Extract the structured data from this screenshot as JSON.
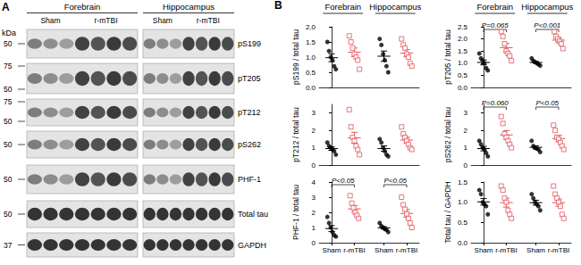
{
  "blots": {
    "panel": "A",
    "unit": "kDa",
    "regions": [
      {
        "name": "Forebrain",
        "groups": [
          "Sham",
          "r-mTBI"
        ]
      },
      {
        "name": "Hippocampus",
        "groups": [
          "Sham",
          "r-mTBI"
        ]
      }
    ],
    "rows": [
      {
        "label": "pS199",
        "markers": [
          50
        ]
      },
      {
        "label": "pT205",
        "markers": [
          75,
          50
        ]
      },
      {
        "label": "pT212",
        "markers": [
          75,
          50
        ]
      },
      {
        "label": "pS262",
        "markers": [
          50
        ]
      },
      {
        "label": "PHF-1",
        "markers": [
          50
        ]
      },
      {
        "label": "Total tau",
        "markers": [
          50
        ]
      },
      {
        "label": "GAPDH",
        "markers": [
          37
        ]
      }
    ]
  },
  "chart_panel": "B",
  "chart_data": [
    {
      "type": "scatter",
      "y_label": "pS199 / total tau",
      "headers": [
        "Forebrain",
        "Hippocampus"
      ],
      "tick_labels": "y",
      "grid": false,
      "ylim": [
        0,
        2
      ],
      "yticks": [
        {
          "value": 0,
          "label": "0.0"
        },
        0.5,
        {
          "value": 1,
          "label": "1.0"
        },
        1.5,
        {
          "value": 2,
          "label": "2.0"
        }
      ],
      "groups": [
        {
          "name": "Sham",
          "color": "#000000",
          "marker": "circle",
          "values": [
            1.5,
            1.2,
            1.0,
            0.9,
            0.7,
            0.6
          ],
          "mean": 0.98,
          "sem": 0.13
        },
        {
          "name": "r-mTBI",
          "color": "#e0555a",
          "marker": "open_square",
          "values": [
            1.7,
            1.5,
            1.3,
            1.1,
            1.0,
            0.9,
            0.6
          ],
          "mean": 1.16,
          "sem": 0.14
        },
        {
          "name": "Sham",
          "color": "#000000",
          "marker": "circle",
          "values": [
            1.6,
            1.4,
            1.1,
            0.9,
            0.7,
            0.5
          ],
          "mean": 1.03,
          "sem": 0.17
        },
        {
          "name": "r-mTBI",
          "color": "#e0555a",
          "marker": "open_square",
          "values": [
            1.6,
            1.4,
            1.3,
            1.1,
            1.0,
            0.8,
            0.7
          ],
          "mean": 1.13,
          "sem": 0.12
        }
      ],
      "annotations": []
    },
    {
      "type": "scatter",
      "y_label": "pT205 / total tau",
      "headers": [
        "Forebrain",
        "Hippocampus"
      ],
      "tick_labels": "y",
      "grid": false,
      "ylim": [
        0,
        2.5
      ],
      "yticks": [
        {
          "value": 0,
          "label": "0.0"
        },
        0.5,
        {
          "value": 1,
          "label": "1.0"
        },
        1.5,
        {
          "value": 2,
          "label": "2.0"
        },
        2.5
      ],
      "groups": [
        {
          "name": "Sham",
          "color": "#000000",
          "marker": "circle",
          "values": [
            1.4,
            1.2,
            1.1,
            1.0,
            0.8,
            0.7
          ],
          "mean": 1.03,
          "sem": 0.1
        },
        {
          "name": "r-mTBI",
          "color": "#e0555a",
          "marker": "open_square",
          "values": [
            2.3,
            2.1,
            1.8,
            1.5,
            1.4,
            1.3,
            1.1
          ],
          "mean": 1.64,
          "sem": 0.17
        },
        {
          "name": "Sham",
          "color": "#000000",
          "marker": "circle",
          "values": [
            1.2,
            1.1,
            1.05,
            1.0,
            0.95,
            0.9
          ],
          "mean": 1.03,
          "sem": 0.04
        },
        {
          "name": "r-mTBI",
          "color": "#e0555a",
          "marker": "open_square",
          "values": [
            2.3,
            2.1,
            2.0,
            1.9,
            1.8,
            1.6
          ],
          "mean": 1.95,
          "sem": 0.1
        }
      ],
      "annotations": [
        {
          "text": "P=0.065",
          "groups": [
            0,
            1
          ]
        },
        {
          "text": "P<0.001",
          "groups": [
            2,
            3
          ]
        }
      ]
    },
    {
      "type": "scatter",
      "y_label": "pT212 / total tau",
      "tick_labels": "y",
      "grid": false,
      "ylim": [
        0,
        3.5
      ],
      "yticks": [
        0,
        1,
        2,
        3
      ],
      "groups": [
        {
          "name": "Sham",
          "color": "#000000",
          "marker": "circle",
          "values": [
            1.3,
            1.1,
            1.0,
            0.9,
            0.8,
            0.6
          ],
          "mean": 0.95,
          "sem": 0.1
        },
        {
          "name": "r-mTBI",
          "color": "#e0555a",
          "marker": "open_square",
          "values": [
            3.2,
            2.2,
            1.6,
            1.4,
            1.1,
            0.9,
            0.6
          ],
          "mean": 1.57,
          "sem": 0.32
        },
        {
          "name": "Sham",
          "color": "#000000",
          "marker": "circle",
          "values": [
            1.5,
            1.3,
            1.0,
            0.8,
            0.6,
            0.5
          ],
          "mean": 0.95,
          "sem": 0.16
        },
        {
          "name": "r-mTBI",
          "color": "#e0555a",
          "marker": "open_square",
          "values": [
            2.2,
            1.8,
            1.6,
            1.4,
            1.2,
            1.0,
            0.9
          ],
          "mean": 1.44,
          "sem": 0.17
        }
      ],
      "annotations": []
    },
    {
      "type": "scatter",
      "y_label": "pS262 / total tau",
      "tick_labels": "y",
      "grid": false,
      "ylim": [
        0,
        3.5
      ],
      "yticks": [
        0,
        1,
        2,
        3
      ],
      "groups": [
        {
          "name": "Sham",
          "color": "#000000",
          "marker": "circle",
          "values": [
            1.4,
            1.2,
            1.0,
            0.9,
            0.7,
            0.5
          ],
          "mean": 0.95,
          "sem": 0.13
        },
        {
          "name": "r-mTBI",
          "color": "#e0555a",
          "marker": "open_square",
          "values": [
            2.8,
            2.4,
            1.8,
            1.6,
            1.4,
            1.2,
            1.0
          ],
          "mean": 1.74,
          "sem": 0.25
        },
        {
          "name": "Sham",
          "color": "#000000",
          "marker": "circle",
          "values": [
            1.4,
            1.1,
            1.0,
            0.95,
            0.9,
            0.75
          ],
          "mean": 1.02,
          "sem": 0.09
        },
        {
          "name": "r-mTBI",
          "color": "#e0555a",
          "marker": "open_square",
          "values": [
            2.3,
            2.0,
            1.6,
            1.5,
            1.3,
            1.1,
            0.9
          ],
          "mean": 1.53,
          "sem": 0.19
        }
      ],
      "annotations": [
        {
          "text": "P=0.060",
          "groups": [
            0,
            1
          ]
        },
        {
          "text": "P<0.05",
          "groups": [
            2,
            3
          ]
        }
      ]
    },
    {
      "type": "scatter",
      "y_label": "PHF-1 / total tau",
      "categories": [
        "Sham",
        "r-mTBI",
        "Sham",
        "r-mTBI"
      ],
      "grid": false,
      "ylim": [
        0,
        4
      ],
      "yticks": [
        0,
        1,
        2,
        3,
        4
      ],
      "groups": [
        {
          "name": "Sham",
          "color": "#000000",
          "marker": "circle",
          "values": [
            1.7,
            1.3,
            1.0,
            0.7,
            0.5,
            0.4
          ],
          "mean": 0.93,
          "sem": 0.2
        },
        {
          "name": "r-mTBI",
          "color": "#e0555a",
          "marker": "open_square",
          "values": [
            3.1,
            2.6,
            2.3,
            2.0,
            1.8,
            1.6
          ],
          "mean": 2.23,
          "sem": 0.22
        },
        {
          "name": "Sham",
          "color": "#000000",
          "marker": "circle",
          "values": [
            1.3,
            1.1,
            1.0,
            0.9,
            0.85,
            0.7
          ],
          "mean": 0.98,
          "sem": 0.08
        },
        {
          "name": "r-mTBI",
          "color": "#e0555a",
          "marker": "open_square",
          "values": [
            3.0,
            2.5,
            2.2,
            1.9,
            1.6,
            1.3,
            1.0
          ],
          "mean": 1.93,
          "sem": 0.26
        }
      ],
      "annotations": [
        {
          "text": "P<0.05",
          "groups": [
            0,
            1
          ]
        },
        {
          "text": "P<0.05",
          "groups": [
            2,
            3
          ]
        }
      ]
    },
    {
      "type": "scatter",
      "y_label": "Total tau / GAPDH",
      "categories": [
        "Sham",
        "r-mTBI",
        "Sham",
        "r-mTBI"
      ],
      "grid": false,
      "ylim": [
        0,
        1.5
      ],
      "yticks": [
        {
          "value": 0,
          "label": "0.0"
        },
        0.5,
        {
          "value": 1,
          "label": "1.0"
        },
        1.5
      ],
      "groups": [
        {
          "name": "Sham",
          "color": "#000000",
          "marker": "circle",
          "values": [
            1.3,
            1.2,
            1.0,
            0.95,
            0.9,
            0.7
          ],
          "mean": 1.01,
          "sem": 0.08
        },
        {
          "name": "r-mTBI",
          "color": "#e0555a",
          "marker": "open_square",
          "values": [
            1.4,
            1.3,
            1.1,
            1.0,
            0.8,
            0.7,
            0.6
          ],
          "mean": 0.99,
          "sem": 0.11
        },
        {
          "name": "Sham",
          "color": "#000000",
          "marker": "circle",
          "values": [
            1.2,
            1.1,
            1.0,
            0.95,
            0.9,
            0.8
          ],
          "mean": 0.99,
          "sem": 0.06
        },
        {
          "name": "r-mTBI",
          "color": "#e0555a",
          "marker": "open_square",
          "values": [
            1.4,
            1.2,
            1.1,
            1.0,
            0.9,
            0.7,
            0.6
          ],
          "mean": 0.99,
          "sem": 0.09
        }
      ],
      "annotations": []
    }
  ]
}
